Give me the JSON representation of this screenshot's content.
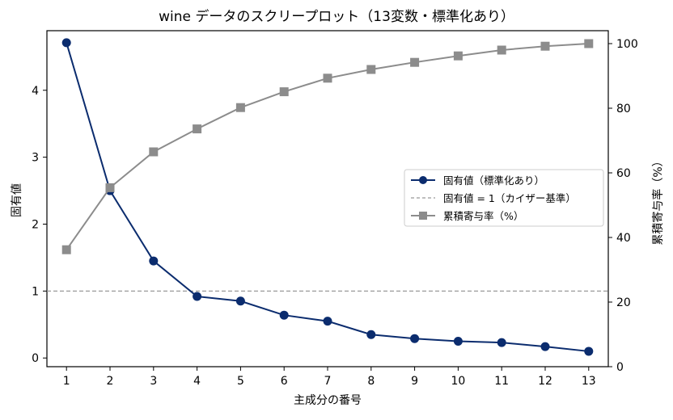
{
  "chart_data": {
    "type": "line",
    "title": "wine データのスクリープロット（13変数・標準化あり）",
    "xlabel": "主成分の番号",
    "ylabel_left": "固有値",
    "ylabel_right": "累積寄与率（%）",
    "x": [
      1,
      2,
      3,
      4,
      5,
      6,
      7,
      8,
      9,
      10,
      11,
      12,
      13
    ],
    "x_tick_labels": [
      "1",
      "2",
      "3",
      "4",
      "5",
      "6",
      "7",
      "8",
      "9",
      "10",
      "11",
      "12",
      "13"
    ],
    "y_left_ticks": [
      "0",
      "1",
      "2",
      "3",
      "4"
    ],
    "y_right_ticks": [
      "0",
      "20",
      "40",
      "60",
      "80",
      "100"
    ],
    "ylim_left": [
      -0.13,
      4.89
    ],
    "ylim_right": [
      0,
      104
    ],
    "xlim": [
      0.55,
      13.45
    ],
    "reference_line": {
      "axis": "left",
      "y": 1,
      "style": "dashed",
      "color": "#999999"
    },
    "series": [
      {
        "name": "固有値（標準化あり）",
        "axis": "left",
        "marker": "circle",
        "color": "#0b2c6e",
        "values": [
          4.71,
          2.5,
          1.45,
          0.92,
          0.85,
          0.64,
          0.55,
          0.35,
          0.29,
          0.25,
          0.23,
          0.17,
          0.1
        ]
      },
      {
        "name": "累積寄与率（%）",
        "axis": "right",
        "marker": "square",
        "color": "#8c8c8c",
        "values": [
          36.2,
          55.4,
          66.5,
          73.6,
          80.2,
          85.1,
          89.3,
          92.0,
          94.2,
          96.2,
          98.0,
          99.2,
          100.0
        ]
      }
    ],
    "legend": {
      "position": "center-right",
      "entries": [
        {
          "label": "固有値（標準化あり）",
          "style": "line-circle",
          "color": "#0b2c6e"
        },
        {
          "label": "固有値 = 1（カイザー基準）",
          "style": "dashed",
          "color": "#999999"
        },
        {
          "label": "累積寄与率（%）",
          "style": "line-square",
          "color": "#8c8c8c"
        }
      ]
    },
    "grid": false
  }
}
